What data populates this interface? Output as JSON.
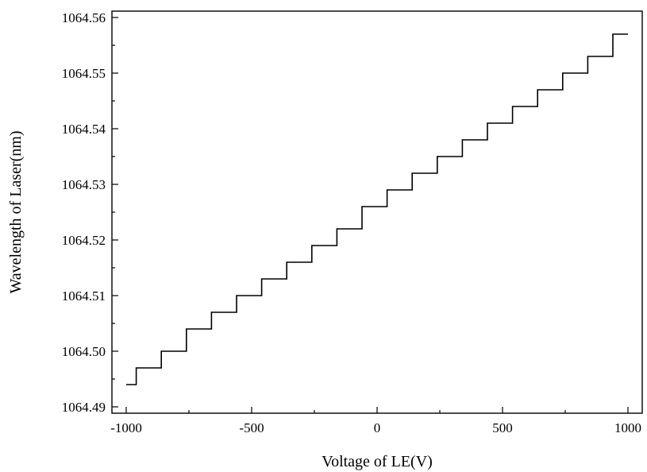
{
  "chart_data": {
    "type": "line",
    "title": "",
    "xlabel": "Voltage of LE(V)",
    "ylabel": "Wavelength of Laser(nm)",
    "xlim": [
      -1000,
      1000
    ],
    "ylim": [
      1064.49,
      1064.56
    ],
    "x_ticks": [
      -1000,
      -500,
      0,
      500,
      1000
    ],
    "x_tick_labels": [
      "-1000",
      "-500",
      "0",
      "500",
      "1000"
    ],
    "y_ticks": [
      1064.49,
      1064.5,
      1064.51,
      1064.52,
      1064.53,
      1064.54,
      1064.55,
      1064.56
    ],
    "y_tick_labels": [
      "1064.49",
      "1064.50",
      "1064.51",
      "1064.52",
      "1064.53",
      "1064.54",
      "1064.55",
      "1064.56"
    ],
    "grid": false,
    "legend": "none",
    "line_color": "#000000",
    "series": [
      {
        "style": "step",
        "x": [
          -1000,
          -960,
          -860,
          -760,
          -660,
          -560,
          -460,
          -360,
          -260,
          -160,
          -60,
          40,
          140,
          240,
          340,
          440,
          540,
          640,
          740,
          840,
          940,
          1000
        ],
        "y": [
          1064.494,
          1064.497,
          1064.5,
          1064.504,
          1064.507,
          1064.51,
          1064.513,
          1064.516,
          1064.519,
          1064.522,
          1064.526,
          1064.529,
          1064.532,
          1064.535,
          1064.538,
          1064.541,
          1064.544,
          1064.547,
          1064.55,
          1064.553,
          1064.557,
          1064.557
        ]
      }
    ]
  }
}
